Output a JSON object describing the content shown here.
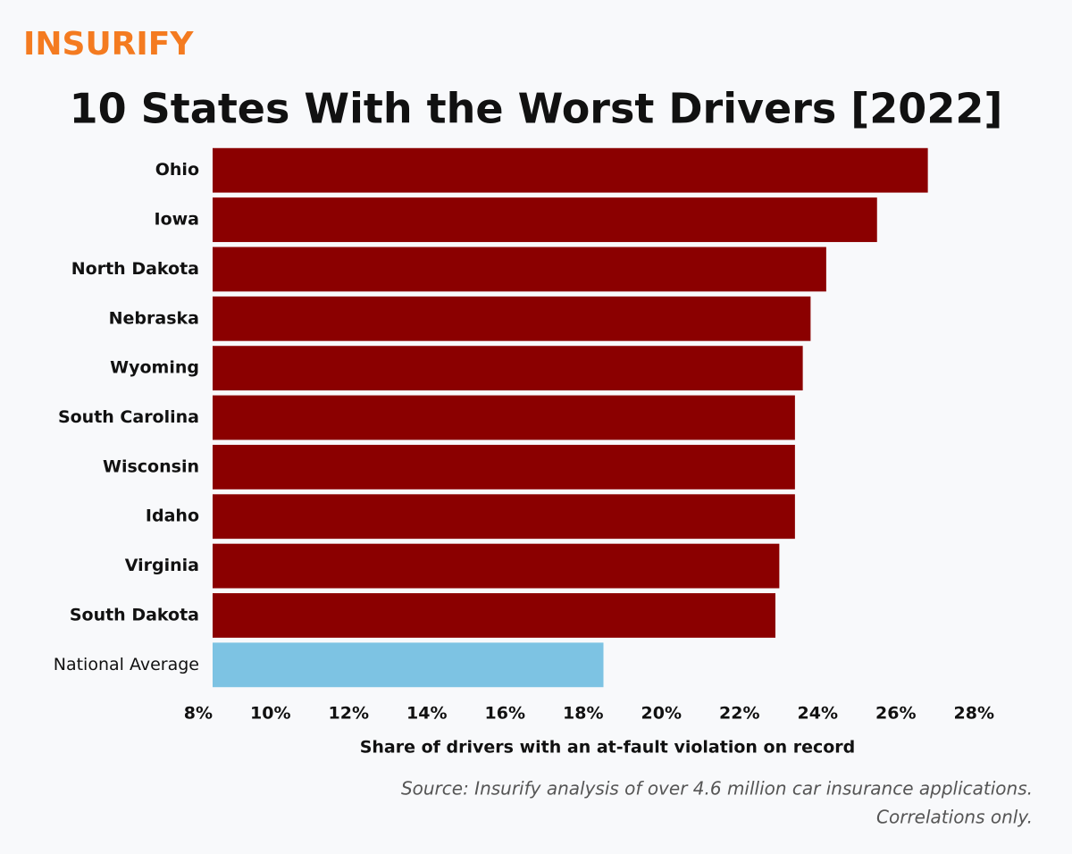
{
  "chart_data": {
    "type": "bar",
    "orientation": "horizontal",
    "brand": "INSURIFY",
    "title": "10 States With the Worst Drivers [2022]",
    "x_label": "Share of drivers with an at-fault violation on record",
    "source": [
      "Source: Insurify analysis of over 4.6 million car insurance applications.",
      "Correlations only."
    ],
    "categories": [
      "Ohio",
      "Iowa",
      "North Dakota",
      "Nebraska",
      "Wyoming",
      "South Carolina",
      "Wisconsin",
      "Idaho",
      "Virginia",
      "South Dakota",
      "National Average"
    ],
    "values": [
      26.3,
      25.0,
      23.7,
      23.3,
      23.1,
      22.9,
      22.9,
      22.9,
      22.5,
      22.4,
      18.0
    ],
    "colors": [
      "#8b0000",
      "#8b0000",
      "#8b0000",
      "#8b0000",
      "#8b0000",
      "#8b0000",
      "#8b0000",
      "#8b0000",
      "#8b0000",
      "#8b0000",
      "#7dc3e3"
    ],
    "xlim": [
      8,
      28
    ],
    "xticks": [
      {
        "value": 8,
        "label": "8%"
      },
      {
        "value": 10,
        "label": "10%"
      },
      {
        "value": 12,
        "label": "12%"
      },
      {
        "value": 14,
        "label": "14%"
      },
      {
        "value": 16,
        "label": "16%"
      },
      {
        "value": 18,
        "label": "18%"
      },
      {
        "value": 20,
        "label": "20%"
      },
      {
        "value": 22,
        "label": "22%"
      },
      {
        "value": 24,
        "label": "24%"
      },
      {
        "value": 26,
        "label": "26%"
      },
      {
        "value": 28,
        "label": "28%"
      }
    ],
    "grid": false
  }
}
